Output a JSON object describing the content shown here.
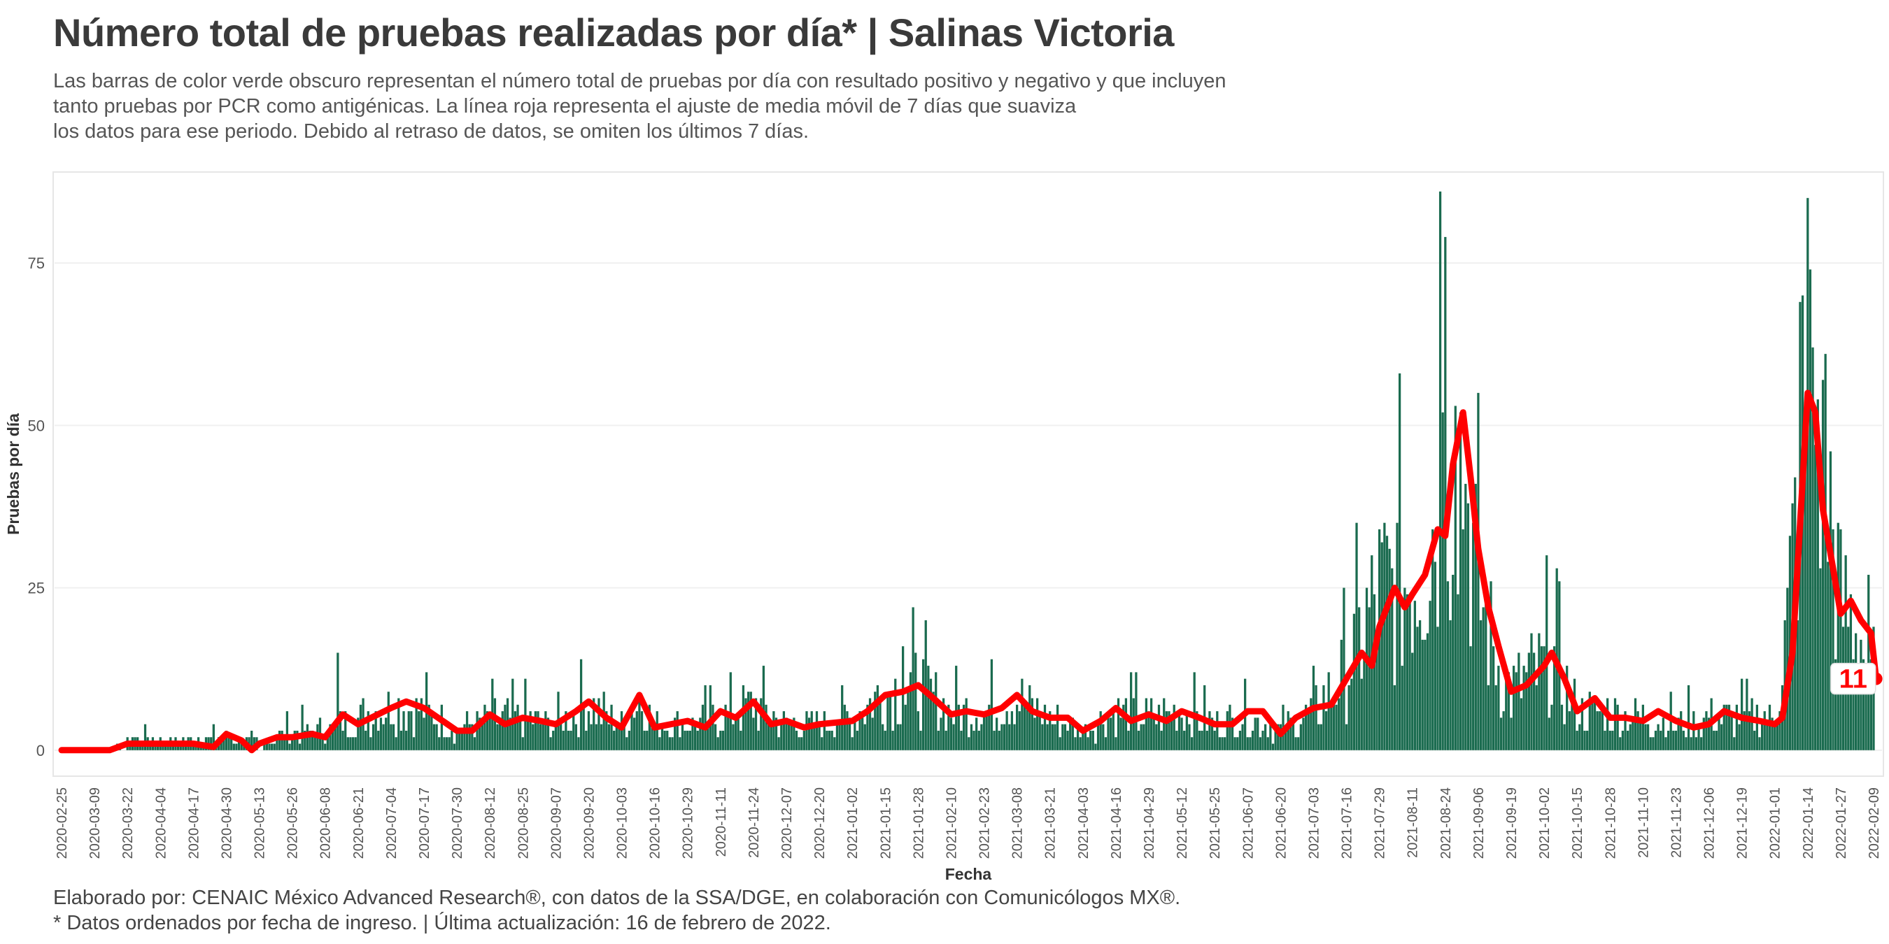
{
  "title": "Número total de pruebas realizadas por día* | Salinas Victoria",
  "subtitle": [
    "Las barras de color verde obscuro representan el número total de pruebas por día con resultado positivo y negativo y que incluyen",
    "tanto pruebas por PCR como antigénicas. La línea roja representa el ajuste de media móvil de 7 días que suaviza",
    "los datos para ese periodo. Debido al retraso de datos, se omiten los últimos 7 días."
  ],
  "caption": [
    "Elaborado por: CENAIC México Advanced Research®, con datos de la SSA/DGE, en colaboración con Comunicólogos MX®.",
    "* Datos ordenados por fecha de ingreso. | Última actualización: 16 de febrero de 2022."
  ],
  "colors": {
    "bars": "#1a6b4f",
    "line": "#ff0000",
    "label_text": "#ff0000"
  },
  "chart_data": {
    "type": "bar",
    "xlabel": "Fecha",
    "ylabel": "Pruebas por día",
    "ylim": [
      -4,
      89
    ],
    "yticks": [
      0,
      25,
      50,
      75
    ],
    "x_start": "2020-02-25",
    "x_end": "2022-02-09",
    "xticks": [
      "2020-02-25",
      "2020-03-09",
      "2020-03-22",
      "2020-04-04",
      "2020-04-17",
      "2020-04-30",
      "2020-05-13",
      "2020-05-26",
      "2020-06-08",
      "2020-06-21",
      "2020-07-04",
      "2020-07-17",
      "2020-07-30",
      "2020-08-12",
      "2020-08-25",
      "2020-09-07",
      "2020-09-20",
      "2020-10-03",
      "2020-10-16",
      "2020-10-29",
      "2020-11-11",
      "2020-11-24",
      "2020-12-07",
      "2020-12-20",
      "2021-01-02",
      "2021-01-15",
      "2021-01-28",
      "2021-02-10",
      "2021-02-23",
      "2021-03-08",
      "2021-03-21",
      "2021-04-03",
      "2021-04-16",
      "2021-04-29",
      "2021-05-12",
      "2021-05-25",
      "2021-06-07",
      "2021-06-20",
      "2021-07-03",
      "2021-07-16",
      "2021-07-29",
      "2021-08-11",
      "2021-08-24",
      "2021-09-06",
      "2021-09-19",
      "2021-10-02",
      "2021-10-15",
      "2021-10-28",
      "2021-11-10",
      "2021-11-23",
      "2021-12-06",
      "2021-12-19",
      "2022-01-01",
      "2022-01-14",
      "2022-01-27",
      "2022-02-09"
    ],
    "bar_profile_note": "Daily test counts sampled at key dates",
    "bar_profile": [
      [
        "2020-02-25",
        0
      ],
      [
        "2020-03-20",
        0.5
      ],
      [
        "2020-03-25",
        2
      ],
      [
        "2020-04-10",
        1.5
      ],
      [
        "2020-04-30",
        2
      ],
      [
        "2020-05-13",
        1
      ],
      [
        "2020-05-26",
        3
      ],
      [
        "2020-06-08",
        3
      ],
      [
        "2020-06-21",
        5
      ],
      [
        "2020-07-04",
        7
      ],
      [
        "2020-07-17",
        6
      ],
      [
        "2020-07-30",
        3
      ],
      [
        "2020-08-12",
        5
      ],
      [
        "2020-08-25",
        5
      ],
      [
        "2020-09-07",
        4
      ],
      [
        "2020-09-20",
        7
      ],
      [
        "2020-10-03",
        4
      ],
      [
        "2020-10-10",
        8
      ],
      [
        "2020-10-16",
        4
      ],
      [
        "2020-10-29",
        4
      ],
      [
        "2020-11-11",
        5
      ],
      [
        "2020-11-24",
        7
      ],
      [
        "2020-12-07",
        4
      ],
      [
        "2020-12-20",
        4
      ],
      [
        "2021-01-02",
        5
      ],
      [
        "2021-01-15",
        9
      ],
      [
        "2021-01-28",
        10
      ],
      [
        "2021-02-10",
        6
      ],
      [
        "2021-02-23",
        6
      ],
      [
        "2021-03-08",
        8
      ],
      [
        "2021-03-21",
        5
      ],
      [
        "2021-04-03",
        3
      ],
      [
        "2021-04-16",
        6
      ],
      [
        "2021-04-29",
        5
      ],
      [
        "2021-05-12",
        6
      ],
      [
        "2021-05-25",
        4
      ],
      [
        "2021-06-07",
        5
      ],
      [
        "2021-06-20",
        3
      ],
      [
        "2021-07-03",
        6
      ],
      [
        "2021-07-16",
        12
      ],
      [
        "2021-07-29",
        24
      ],
      [
        "2021-08-11",
        27
      ],
      [
        "2021-08-18",
        33
      ],
      [
        "2021-08-24",
        44
      ],
      [
        "2021-08-29",
        50
      ],
      [
        "2021-09-06",
        25
      ],
      [
        "2021-09-12",
        15
      ],
      [
        "2021-09-19",
        9
      ],
      [
        "2021-10-02",
        13
      ],
      [
        "2021-10-05",
        14
      ],
      [
        "2021-10-15",
        6
      ],
      [
        "2021-10-28",
        6
      ],
      [
        "2021-11-10",
        5
      ],
      [
        "2021-11-23",
        4
      ],
      [
        "2021-12-06",
        5
      ],
      [
        "2021-12-19",
        5
      ],
      [
        "2022-01-01",
        5
      ],
      [
        "2022-01-06",
        20
      ],
      [
        "2022-01-12",
        48
      ],
      [
        "2022-01-16",
        55
      ],
      [
        "2022-01-22",
        40
      ],
      [
        "2022-01-27",
        22
      ],
      [
        "2022-02-03",
        19
      ],
      [
        "2022-02-09",
        9
      ]
    ],
    "bar_spikes": [
      [
        "2020-06-13",
        15
      ],
      [
        "2021-01-22",
        16
      ],
      [
        "2021-08-22",
        86
      ],
      [
        "2021-08-24",
        79
      ],
      [
        "2021-08-28",
        53
      ],
      [
        "2021-09-02",
        38
      ],
      [
        "2022-01-11",
        69
      ],
      [
        "2022-01-14",
        85
      ],
      [
        "2022-01-16",
        62
      ],
      [
        "2022-01-20",
        57
      ]
    ],
    "series": [
      {
        "name": "",
        "type": "line",
        "points": [
          [
            "2020-02-25",
            0
          ],
          [
            "2020-03-15",
            0
          ],
          [
            "2020-03-22",
            1
          ],
          [
            "2020-04-04",
            1
          ],
          [
            "2020-04-17",
            1
          ],
          [
            "2020-04-25",
            0.5
          ],
          [
            "2020-04-30",
            2.5
          ],
          [
            "2020-05-06",
            1.5
          ],
          [
            "2020-05-10",
            0
          ],
          [
            "2020-05-13",
            1
          ],
          [
            "2020-05-20",
            2
          ],
          [
            "2020-05-26",
            2
          ],
          [
            "2020-06-03",
            2.5
          ],
          [
            "2020-06-08",
            2
          ],
          [
            "2020-06-15",
            5.5
          ],
          [
            "2020-06-21",
            4
          ],
          [
            "2020-07-04",
            6.5
          ],
          [
            "2020-07-10",
            7.5
          ],
          [
            "2020-07-17",
            6.5
          ],
          [
            "2020-07-30",
            3
          ],
          [
            "2020-08-05",
            3
          ],
          [
            "2020-08-12",
            5.5
          ],
          [
            "2020-08-18",
            4
          ],
          [
            "2020-08-25",
            5
          ],
          [
            "2020-09-01",
            4.5
          ],
          [
            "2020-09-07",
            4
          ],
          [
            "2020-09-15",
            6
          ],
          [
            "2020-09-20",
            7.5
          ],
          [
            "2020-09-27",
            5
          ],
          [
            "2020-10-03",
            3.5
          ],
          [
            "2020-10-10",
            8.5
          ],
          [
            "2020-10-16",
            3.5
          ],
          [
            "2020-10-29",
            4.5
          ],
          [
            "2020-11-05",
            3.5
          ],
          [
            "2020-11-11",
            6
          ],
          [
            "2020-11-17",
            5
          ],
          [
            "2020-11-24",
            7.5
          ],
          [
            "2020-12-01",
            4
          ],
          [
            "2020-12-07",
            4.5
          ],
          [
            "2020-12-14",
            3.5
          ],
          [
            "2020-12-20",
            4
          ],
          [
            "2021-01-02",
            4.5
          ],
          [
            "2021-01-08",
            6
          ],
          [
            "2021-01-15",
            8.5
          ],
          [
            "2021-01-22",
            9
          ],
          [
            "2021-01-28",
            10
          ],
          [
            "2021-02-03",
            8
          ],
          [
            "2021-02-10",
            5.5
          ],
          [
            "2021-02-16",
            6
          ],
          [
            "2021-02-23",
            5.5
          ],
          [
            "2021-03-02",
            6.5
          ],
          [
            "2021-03-08",
            8.5
          ],
          [
            "2021-03-14",
            6
          ],
          [
            "2021-03-21",
            5
          ],
          [
            "2021-03-28",
            5
          ],
          [
            "2021-04-03",
            3
          ],
          [
            "2021-04-10",
            4.5
          ],
          [
            "2021-04-16",
            6.5
          ],
          [
            "2021-04-22",
            4.5
          ],
          [
            "2021-04-29",
            5.5
          ],
          [
            "2021-05-06",
            4.5
          ],
          [
            "2021-05-12",
            6
          ],
          [
            "2021-05-19",
            5
          ],
          [
            "2021-05-25",
            4
          ],
          [
            "2021-06-01",
            4
          ],
          [
            "2021-06-07",
            6
          ],
          [
            "2021-06-13",
            6
          ],
          [
            "2021-06-20",
            2.5
          ],
          [
            "2021-06-26",
            5
          ],
          [
            "2021-07-03",
            6.5
          ],
          [
            "2021-07-10",
            7
          ],
          [
            "2021-07-16",
            11
          ],
          [
            "2021-07-22",
            15
          ],
          [
            "2021-07-26",
            13
          ],
          [
            "2021-07-29",
            19
          ],
          [
            "2021-08-04",
            25
          ],
          [
            "2021-08-08",
            22
          ],
          [
            "2021-08-11",
            24
          ],
          [
            "2021-08-16",
            27
          ],
          [
            "2021-08-21",
            34
          ],
          [
            "2021-08-24",
            33
          ],
          [
            "2021-08-27",
            44
          ],
          [
            "2021-08-31",
            52
          ],
          [
            "2021-09-03",
            42
          ],
          [
            "2021-09-06",
            31
          ],
          [
            "2021-09-10",
            22
          ],
          [
            "2021-09-14",
            16
          ],
          [
            "2021-09-19",
            9
          ],
          [
            "2021-09-25",
            10
          ],
          [
            "2021-10-02",
            13
          ],
          [
            "2021-10-05",
            15
          ],
          [
            "2021-10-10",
            11
          ],
          [
            "2021-10-15",
            6
          ],
          [
            "2021-10-22",
            8
          ],
          [
            "2021-10-28",
            5
          ],
          [
            "2021-11-03",
            5
          ],
          [
            "2021-11-10",
            4.5
          ],
          [
            "2021-11-16",
            6
          ],
          [
            "2021-11-23",
            4.5
          ],
          [
            "2021-11-30",
            3.5
          ],
          [
            "2021-12-06",
            4
          ],
          [
            "2021-12-12",
            6
          ],
          [
            "2021-12-19",
            5
          ],
          [
            "2021-12-26",
            4.5
          ],
          [
            "2022-01-01",
            4
          ],
          [
            "2022-01-04",
            5
          ],
          [
            "2022-01-08",
            15
          ],
          [
            "2022-01-11",
            35
          ],
          [
            "2022-01-14",
            55
          ],
          [
            "2022-01-17",
            52
          ],
          [
            "2022-01-20",
            37
          ],
          [
            "2022-01-24",
            28
          ],
          [
            "2022-01-27",
            21
          ],
          [
            "2022-01-31",
            23
          ],
          [
            "2022-02-04",
            20
          ],
          [
            "2022-02-08",
            18
          ],
          [
            "2022-02-10",
            11
          ]
        ]
      }
    ],
    "annotations": [
      {
        "x": "2022-02-07",
        "y": 11,
        "text": "11"
      }
    ]
  }
}
